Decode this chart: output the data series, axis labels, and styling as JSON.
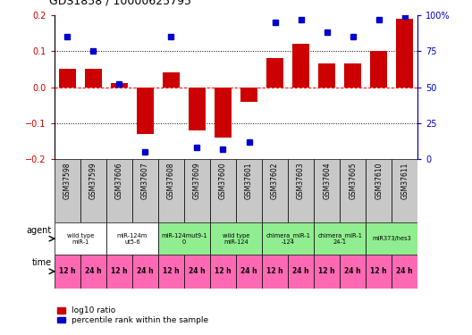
{
  "title": "GDS1858 / 10000625795",
  "samples": [
    "GSM37598",
    "GSM37599",
    "GSM37606",
    "GSM37607",
    "GSM37608",
    "GSM37609",
    "GSM37600",
    "GSM37601",
    "GSM37602",
    "GSM37603",
    "GSM37604",
    "GSM37605",
    "GSM37610",
    "GSM37611"
  ],
  "log10_ratio": [
    0.05,
    0.05,
    0.01,
    -0.13,
    0.04,
    -0.12,
    -0.14,
    -0.04,
    0.08,
    0.12,
    0.065,
    0.065,
    0.1,
    0.19
  ],
  "percentile": [
    85,
    75,
    52,
    5,
    85,
    8,
    7,
    12,
    95,
    97,
    88,
    85,
    97,
    99
  ],
  "ylim": [
    -0.2,
    0.2
  ],
  "yticks_left": [
    -0.2,
    -0.1,
    0.0,
    0.1,
    0.2
  ],
  "yticks_right": [
    0,
    25,
    50,
    75,
    100
  ],
  "agent_groups": [
    {
      "label": "wild type\nmiR-1",
      "start": 0,
      "end": 2,
      "color": "#ffffff"
    },
    {
      "label": "miR-124m\nut5-6",
      "start": 2,
      "end": 4,
      "color": "#ffffff"
    },
    {
      "label": "miR-124mut9-1\n0",
      "start": 4,
      "end": 6,
      "color": "#90ee90"
    },
    {
      "label": "wild type\nmiR-124",
      "start": 6,
      "end": 8,
      "color": "#90ee90"
    },
    {
      "label": "chimera_miR-1\n-124",
      "start": 8,
      "end": 10,
      "color": "#90ee90"
    },
    {
      "label": "chimera_miR-1\n24-1",
      "start": 10,
      "end": 12,
      "color": "#90ee90"
    },
    {
      "label": "miR373/hes3",
      "start": 12,
      "end": 14,
      "color": "#90ee90"
    }
  ],
  "time_labels": [
    "12 h",
    "24 h",
    "12 h",
    "24 h",
    "12 h",
    "24 h",
    "12 h",
    "24 h",
    "12 h",
    "24 h",
    "12 h",
    "24 h",
    "12 h",
    "24 h"
  ],
  "time_color": "#ff69b4",
  "bar_color": "#cc0000",
  "dot_color": "#0000cc",
  "label_color_red": "#cc0000",
  "label_color_blue": "#0000cc",
  "gray_cell": "#c8c8c8"
}
